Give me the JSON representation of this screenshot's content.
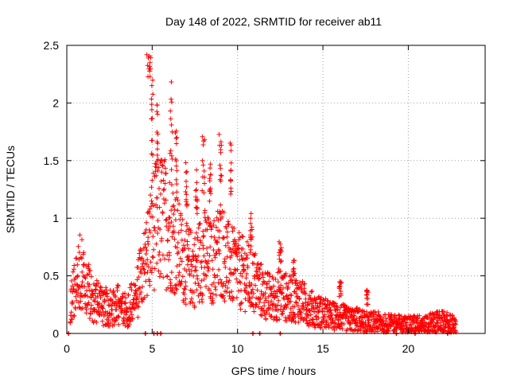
{
  "chart_data": {
    "type": "scatter",
    "title": "Day 148 of 2022, SRMTID for receiver ab11",
    "xlabel": "GPS time / hours",
    "ylabel": "SRMTID / TECUs",
    "xlim": [
      0,
      24.5
    ],
    "ylim": [
      0,
      2.5
    ],
    "xticks": [
      0,
      5,
      10,
      15,
      20
    ],
    "yticks": [
      0,
      0.5,
      1,
      1.5,
      2,
      2.5
    ],
    "xtick_labels": [
      "0",
      "5",
      "10",
      "15",
      "20"
    ],
    "ytick_labels": [
      "0",
      "0.5",
      "1",
      "1.5",
      "2",
      "2.5"
    ],
    "grid": true,
    "marker": "+",
    "color": "#ff0000",
    "envelope": {
      "description": "approximate central trend of the point cloud (hours, TECU)",
      "x": [
        0.2,
        0.5,
        0.8,
        1.0,
        1.5,
        2.0,
        2.5,
        3.0,
        3.5,
        4.0,
        4.3,
        4.6,
        4.8,
        5.0,
        5.3,
        5.6,
        6.0,
        6.3,
        6.6,
        7.0,
        7.5,
        8.0,
        8.5,
        9.0,
        9.5,
        10.0,
        10.5,
        11.0,
        11.5,
        12.0,
        12.5,
        13.0,
        13.5,
        14.0,
        14.5,
        15.0,
        15.5,
        16.0,
        16.5,
        17.0,
        17.5,
        18.0,
        18.5,
        19.0,
        19.5,
        20.0,
        20.5,
        21.0,
        21.5,
        22.0,
        22.5,
        22.8
      ],
      "y": [
        0.25,
        0.4,
        0.55,
        0.45,
        0.3,
        0.25,
        0.22,
        0.25,
        0.2,
        0.3,
        0.45,
        0.6,
        0.75,
        0.9,
        0.95,
        1.0,
        0.9,
        0.85,
        0.7,
        0.6,
        0.55,
        0.7,
        0.6,
        0.75,
        0.6,
        0.55,
        0.5,
        0.45,
        0.35,
        0.3,
        0.35,
        0.3,
        0.3,
        0.25,
        0.2,
        0.18,
        0.15,
        0.15,
        0.12,
        0.12,
        0.1,
        0.1,
        0.09,
        0.08,
        0.08,
        0.07,
        0.08,
        0.08,
        0.1,
        0.1,
        0.09,
        0.05
      ]
    },
    "zero_markers_x": [
      0.1,
      4.6,
      5.1,
      5.3,
      5.5,
      10.9,
      11.3,
      12.5,
      19.3,
      20.4,
      22.3
    ]
  }
}
